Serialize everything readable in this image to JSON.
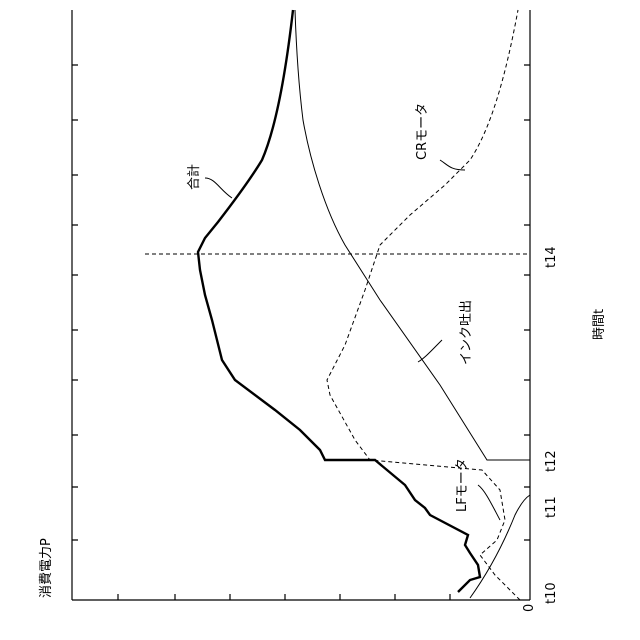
{
  "figure": {
    "y_axis_label": "消費電力P",
    "x_axis_label": "時間t",
    "origin_label": "0",
    "time_labels": [
      "t10",
      "t11",
      "t12",
      "t14"
    ],
    "curve_labels": {
      "total": "合計",
      "cr_motor": "CRモータ",
      "ink_ejection": "インク吐出",
      "lf_motor": "LFモータ"
    }
  }
}
